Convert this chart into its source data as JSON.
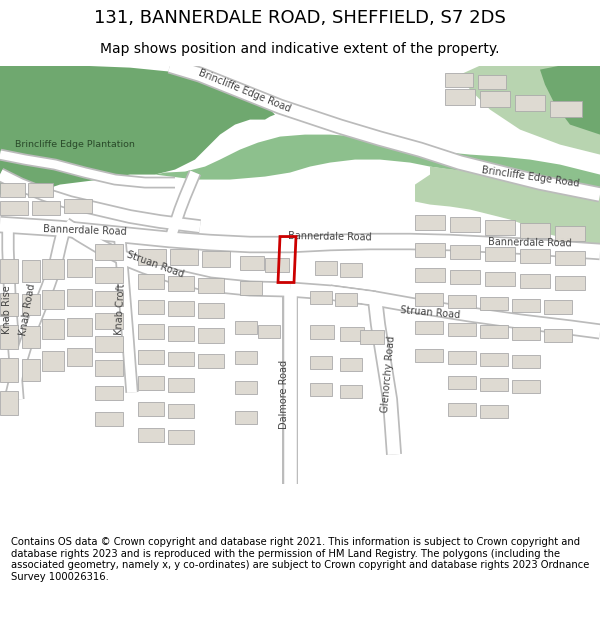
{
  "title_line1": "131, BANNERDALE ROAD, SHEFFIELD, S7 2DS",
  "title_line2": "Map shows position and indicative extent of the property.",
  "footer_text": "Contains OS data © Crown copyright and database right 2021. This information is subject to Crown copyright and database rights 2023 and is reproduced with the permission of HM Land Registry. The polygons (including the associated geometry, namely x, y co-ordinates) are subject to Crown copyright and database rights 2023 Ordnance Survey 100026316.",
  "bg_color": "#f0eeea",
  "road_color": "#ffffff",
  "road_border_color": "#c8c8c8",
  "green_dark": "#6fa86f",
  "green_mid": "#8dc08d",
  "green_light": "#b8d4b0",
  "building_fill": "#dedad2",
  "building_edge": "#aaaaaa",
  "highlight_color": "#cc0000",
  "title_fs": 13,
  "sub_fs": 10,
  "footer_fs": 7.2,
  "label_fs": 7.0,
  "label_color": "#444444"
}
